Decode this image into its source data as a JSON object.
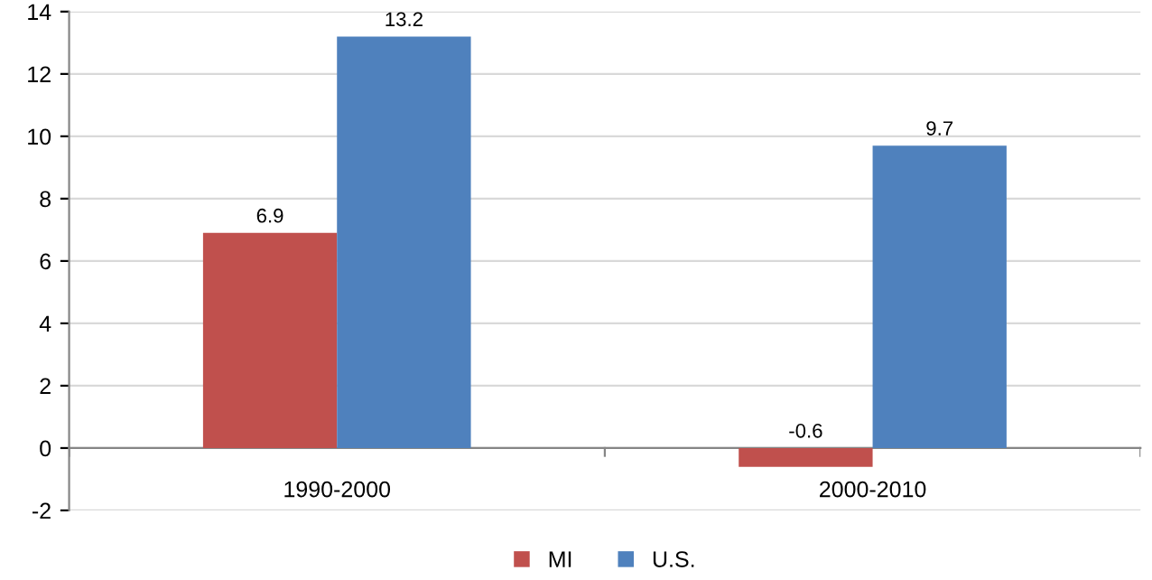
{
  "chart_data": {
    "type": "bar",
    "categories": [
      "1990-2000",
      "2000-2010"
    ],
    "series": [
      {
        "name": "MI",
        "color": "#c0504d",
        "values": [
          6.9,
          -0.6
        ]
      },
      {
        "name": "U.S.",
        "color": "#4f81bd",
        "values": [
          13.2,
          9.7
        ]
      }
    ],
    "ylim": [
      -2,
      14
    ],
    "yticks": [
      -2,
      0,
      2,
      4,
      6,
      8,
      10,
      12,
      14
    ],
    "grid": "y",
    "legend": "bottom",
    "data_labels": true
  }
}
